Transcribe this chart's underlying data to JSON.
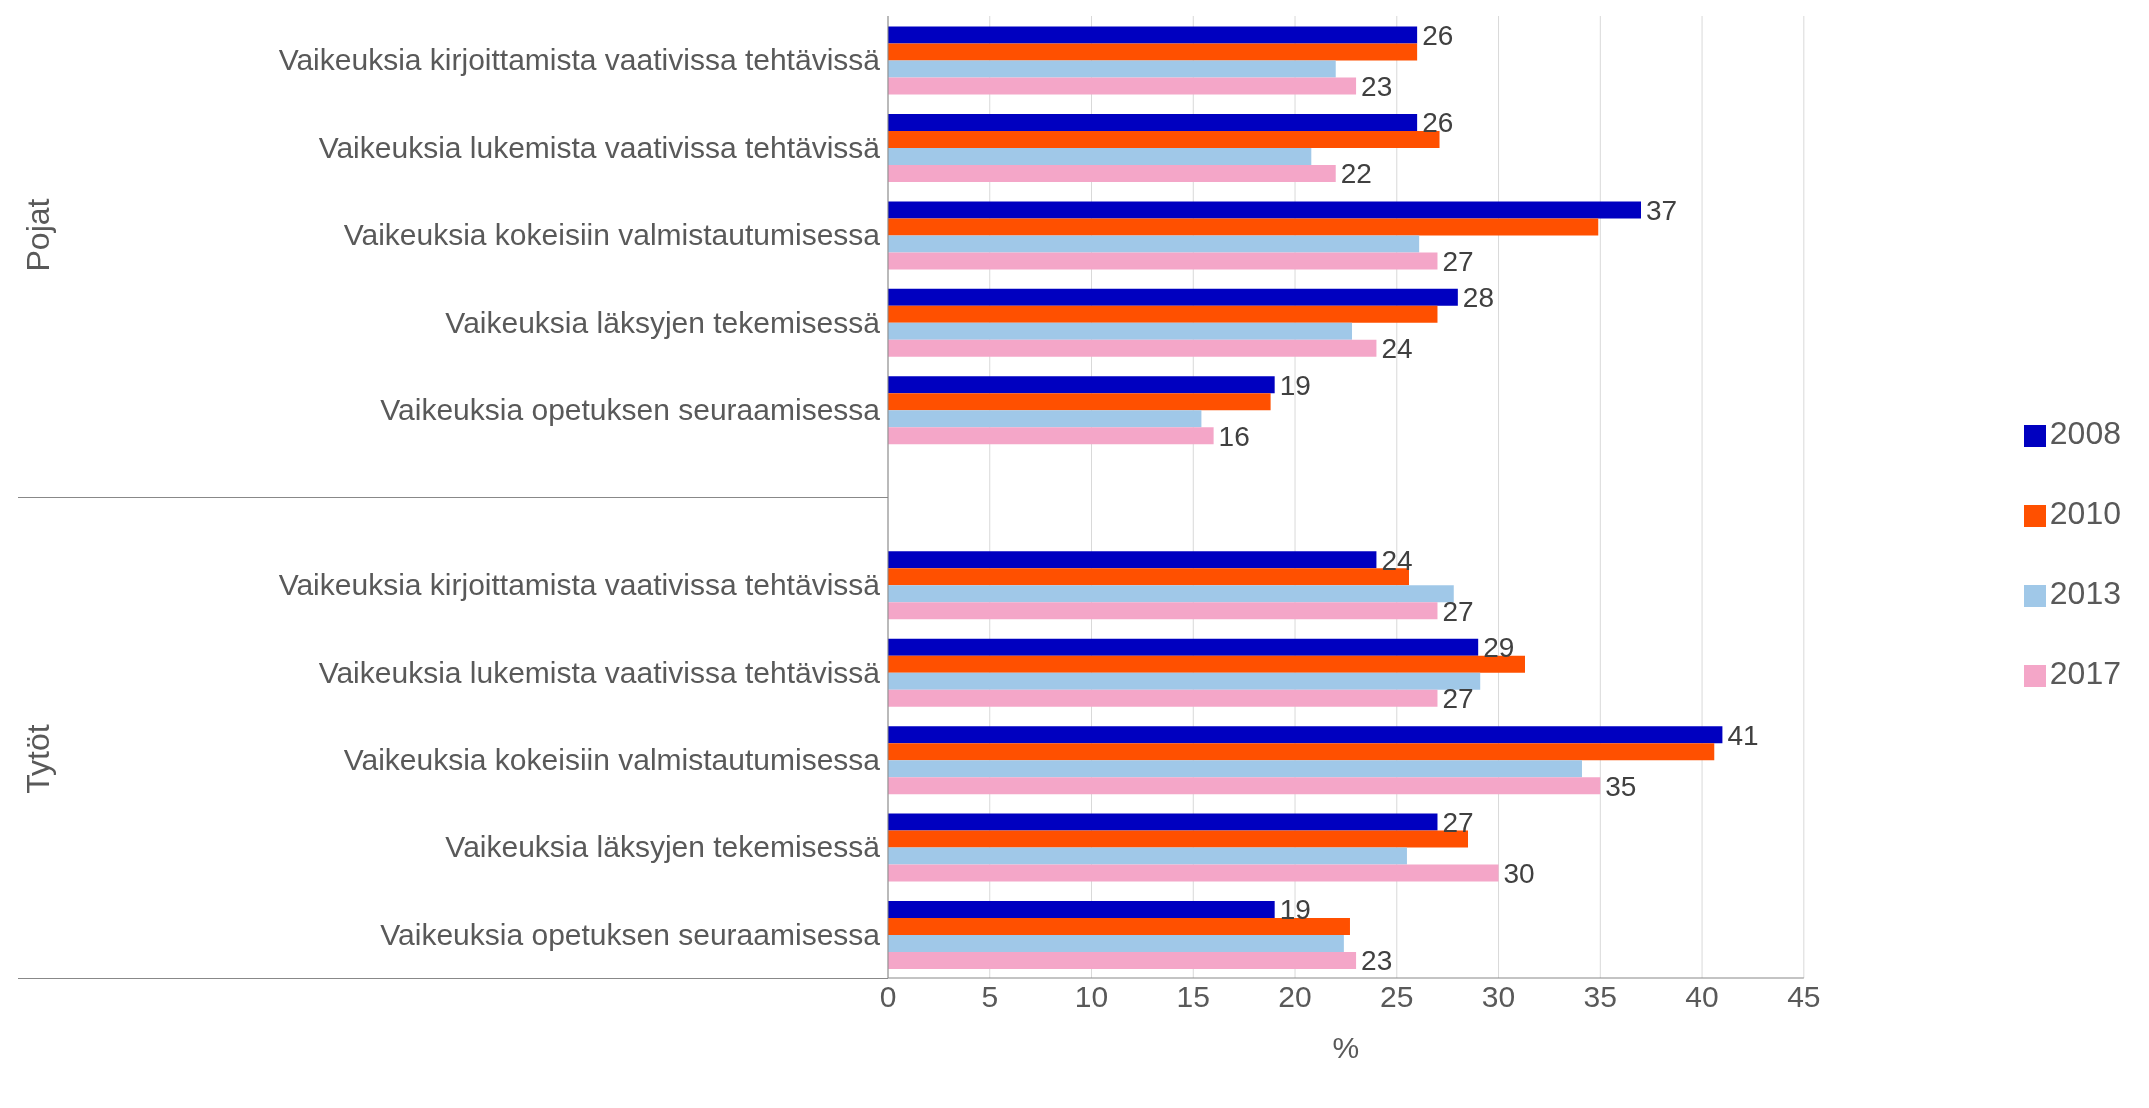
{
  "chart_data": {
    "type": "bar",
    "orientation": "horizontal",
    "xlabel": "%",
    "annotations": [
      "Pojat",
      "Tytöt"
    ],
    "categories": [
      "Vaikeuksia kirjoittamista vaativissa tehtävissä",
      "Vaikeuksia lukemista vaativissa tehtävissä",
      "Vaikeuksia kokeisiin valmistautumisessa",
      "Vaikeuksia läksyjen tekemisessä",
      "Vaikeuksia opetuksen seuraamisessa",
      "Vaikeuksia kirjoittamista vaativissa tehtävissä",
      "Vaikeuksia lukemista vaativissa tehtävissä",
      "Vaikeuksia kokeisiin valmistautumisessa",
      "Vaikeuksia läksyjen tekemisessä",
      "Vaikeuksia opetuksen seuraamisessa"
    ],
    "series": [
      {
        "name": "2008",
        "color": "#0000c0",
        "values": [
          26,
          26,
          37,
          28,
          19,
          24,
          29,
          41,
          27,
          19
        ],
        "value_labels": [
          "26",
          "26",
          "37",
          "28",
          "19",
          "24",
          "29",
          "41",
          "27",
          "19"
        ]
      },
      {
        "name": "2010",
        "color": "#ff5000",
        "values": [
          26.0,
          27.1,
          34.9,
          27.0,
          18.8,
          25.6,
          31.3,
          40.6,
          28.5,
          22.7
        ]
      },
      {
        "name": "2013",
        "color": "#a0c8e8",
        "values": [
          22.0,
          20.8,
          26.1,
          22.8,
          15.4,
          27.8,
          29.1,
          34.1,
          25.5,
          22.4
        ]
      },
      {
        "name": "2017",
        "color": "#f4a6c8",
        "values": [
          23,
          22,
          27,
          24,
          16,
          27,
          27,
          35,
          30,
          23
        ],
        "value_labels": [
          "23",
          "22",
          "27",
          "24",
          "16",
          "27",
          "27",
          "35",
          "30",
          "23"
        ]
      }
    ],
    "xlim": [
      0,
      45
    ],
    "xticks": [
      0,
      5,
      10,
      15,
      20,
      25,
      30,
      35,
      40,
      45
    ],
    "grid": "x",
    "legend": "right"
  }
}
